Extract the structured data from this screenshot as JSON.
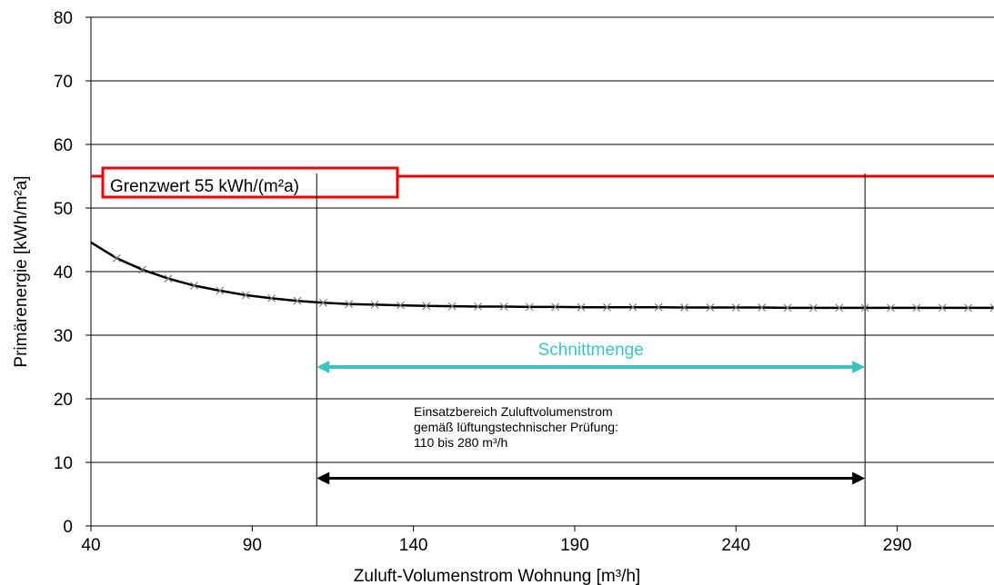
{
  "chart_data": {
    "type": "line",
    "title": "",
    "xlabel": "Zuluft-Volumenstrom Wohnung [m³/h]",
    "ylabel": "Primärenergie  [kWh/m²a]",
    "xlim": [
      40,
      320
    ],
    "ylim": [
      0,
      80
    ],
    "x_ticks": [
      40,
      90,
      140,
      190,
      240,
      290
    ],
    "y_ticks": [
      0,
      10,
      20,
      30,
      40,
      50,
      60,
      70,
      80
    ],
    "grid": "horizontal",
    "series": [
      {
        "color": "#000000",
        "marker": "x",
        "x": [
          40,
          48,
          56,
          64,
          72,
          80,
          88,
          96,
          104,
          112,
          120,
          128,
          136,
          144,
          152,
          160,
          168,
          176,
          184,
          192,
          200,
          208,
          216,
          224,
          232,
          240,
          248,
          256,
          264,
          272,
          280,
          288,
          296,
          304,
          312,
          320
        ],
        "y": [
          44.6,
          42.1,
          40.3,
          38.9,
          37.8,
          37.0,
          36.3,
          35.8,
          35.4,
          35.1,
          34.9,
          34.8,
          34.7,
          34.6,
          34.55,
          34.5,
          34.5,
          34.45,
          34.45,
          34.4,
          34.4,
          34.4,
          34.4,
          34.35,
          34.35,
          34.35,
          34.35,
          34.3,
          34.3,
          34.3,
          34.3,
          34.3,
          34.3,
          34.3,
          34.3,
          34.3
        ]
      }
    ],
    "limit_line": {
      "y": 55,
      "label": "Grenzwert  55 kWh/(m²a)",
      "color": "#ee0000"
    },
    "vertical_lines": [
      110,
      280
    ],
    "ranges": [
      {
        "from": 110,
        "to": 280,
        "y": 25,
        "color": "#3cc4c4",
        "label": "Schnittmenge"
      },
      {
        "from": 110,
        "to": 280,
        "y": 7.5,
        "color": "#000000"
      }
    ],
    "annotation": {
      "lines": [
        "Einsatzbereich  Zuluftvolumenstrom",
        "gemäß  lüftungstechnischer Prüfung:",
        "110 bis 280 m³/h"
      ]
    }
  }
}
